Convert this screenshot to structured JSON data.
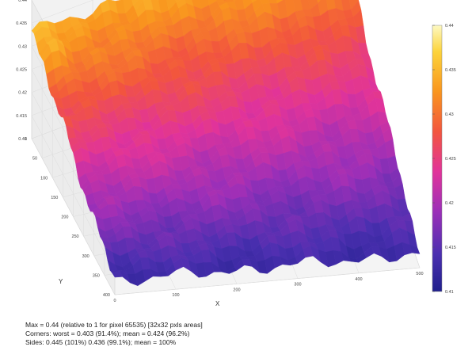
{
  "chart_data": {
    "type": "surface",
    "xlabel": "X",
    "ylabel": "Y",
    "xlim": [
      0,
      500
    ],
    "ylim": [
      0,
      400
    ],
    "zlim": [
      0.41,
      0.44
    ],
    "x_ticks": [
      "0",
      "100",
      "200",
      "300",
      "400",
      "500"
    ],
    "y_ticks": [
      "0",
      "50",
      "100",
      "150",
      "200",
      "250",
      "300",
      "350",
      "400"
    ],
    "z_ticks": [
      "0.41",
      "0.415",
      "0.42",
      "0.425",
      "0.43",
      "0.435",
      "0.44"
    ],
    "colorbar_ticks": [
      "0.44",
      "0.435",
      "0.43",
      "0.425",
      "0.42",
      "0.415",
      "0.41"
    ],
    "colormap": [
      "#1f1f8c",
      "#4b2fb0",
      "#9b2fb8",
      "#e1339a",
      "#f2553e",
      "#f9951e",
      "#fcd33a",
      "#fdf9c2"
    ],
    "grid": true,
    "colorbar": true,
    "surface_trend": {
      "z_at_y0": 0.433,
      "z_at_y400": 0.413,
      "ripple_amplitude": 0.0015
    }
  },
  "stats": {
    "line1": "Max = 0.44  (relative to 1 for pixel 65535) [32x32 pxls areas]",
    "line2": "Corners: worst = 0.403 (91.4%);   mean = 0.424 (96.2%)",
    "line3": "Sides: 0.445 (101%)  0.436 (99.1%);  mean = 100%"
  }
}
